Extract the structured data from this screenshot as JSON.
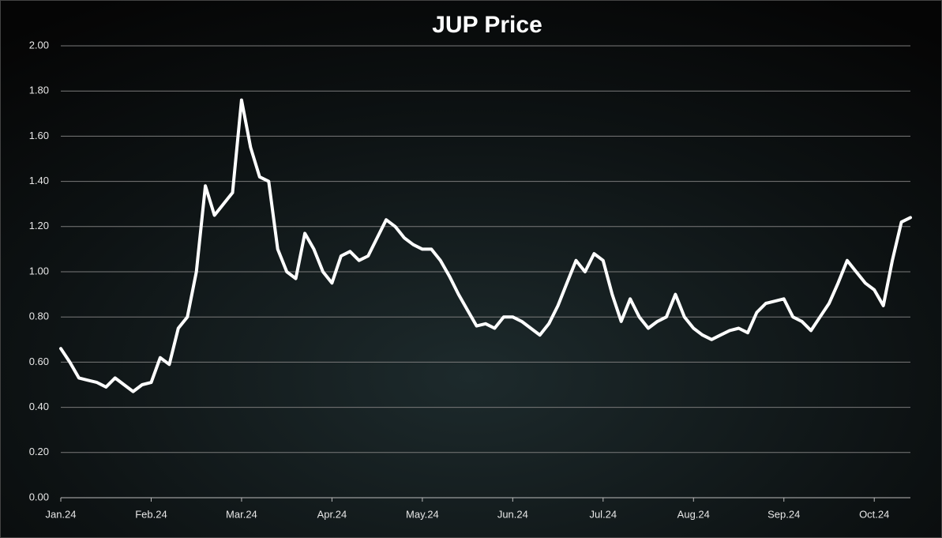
{
  "chart_data": {
    "type": "line",
    "title": "JUP Price",
    "categories": [
      "Jan.24",
      null,
      null,
      null,
      null,
      null,
      null,
      null,
      null,
      null,
      "Feb.24",
      null,
      null,
      null,
      null,
      null,
      null,
      null,
      null,
      null,
      "Mar.24",
      null,
      null,
      null,
      null,
      null,
      null,
      null,
      null,
      null,
      "Apr.24",
      null,
      null,
      null,
      null,
      null,
      null,
      null,
      null,
      null,
      "May.24",
      null,
      null,
      null,
      null,
      null,
      null,
      null,
      null,
      null,
      "Jun.24",
      null,
      null,
      null,
      null,
      null,
      null,
      null,
      null,
      null,
      "Jul.24",
      null,
      null,
      null,
      null,
      null,
      null,
      null,
      null,
      null,
      "Aug.24",
      null,
      null,
      null,
      null,
      null,
      null,
      null,
      null,
      null,
      "Sep.24",
      null,
      null,
      null,
      null,
      null,
      null,
      null,
      null,
      null,
      "Oct.24",
      null,
      null,
      null,
      null
    ],
    "values": [
      0.66,
      0.6,
      0.53,
      0.52,
      0.51,
      0.49,
      0.53,
      0.5,
      0.47,
      0.5,
      0.51,
      0.62,
      0.59,
      0.75,
      0.8,
      1.0,
      1.38,
      1.25,
      1.3,
      1.35,
      1.76,
      1.55,
      1.42,
      1.4,
      1.1,
      1.0,
      0.97,
      1.17,
      1.1,
      1.0,
      0.95,
      1.07,
      1.09,
      1.05,
      1.07,
      1.15,
      1.23,
      1.2,
      1.15,
      1.12,
      1.1,
      1.1,
      1.05,
      0.98,
      0.9,
      0.83,
      0.76,
      0.77,
      0.75,
      0.8,
      0.8,
      0.78,
      0.75,
      0.72,
      0.77,
      0.85,
      0.95,
      1.05,
      1.0,
      1.08,
      1.05,
      0.9,
      0.78,
      0.88,
      0.8,
      0.75,
      0.78,
      0.8,
      0.9,
      0.8,
      0.75,
      0.72,
      0.7,
      0.72,
      0.74,
      0.75,
      0.73,
      0.82,
      0.86,
      0.87,
      0.88,
      0.8,
      0.78,
      0.74,
      0.8,
      0.86,
      0.95,
      1.05,
      1.0,
      0.95,
      0.92,
      0.85,
      1.05,
      1.22,
      1.24
    ],
    "color": "#ffffff",
    "ylim": [
      0,
      2
    ],
    "yticks": [
      {
        "value": 0,
        "label": "0.00"
      },
      {
        "value": 0.2,
        "label": "0.20"
      },
      {
        "value": 0.4,
        "label": "0.40"
      },
      {
        "value": 0.6,
        "label": "0.60"
      },
      {
        "value": 0.8,
        "label": "0.80"
      },
      {
        "value": 1,
        "label": "1.00"
      },
      {
        "value": 1.2,
        "label": "1.20"
      },
      {
        "value": 1.4,
        "label": "1.40"
      },
      {
        "value": 1.6,
        "label": "1.60"
      },
      {
        "value": 1.8,
        "label": "1.80"
      },
      {
        "value": 2,
        "label": "2.00"
      }
    ],
    "grid": true
  }
}
